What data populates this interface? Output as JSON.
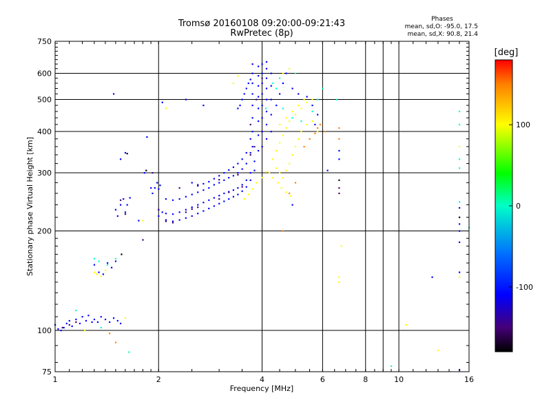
{
  "chart_data": {
    "type": "scatter",
    "title": "Tromsø 20160108 09:20:00-09:21:43",
    "subtitle": "RwPretec (8p)",
    "xlabel": "Frequency [MHz]",
    "ylabel": "Stationary phase Virtual Height [km]",
    "x_scale": "log",
    "y_scale": "log",
    "xlim": [
      1,
      16
    ],
    "ylim": [
      75,
      750
    ],
    "x_ticks": [
      1,
      2,
      4,
      6,
      8,
      10,
      16
    ],
    "y_ticks": [
      75,
      100,
      200,
      300,
      400,
      500,
      600,
      750
    ],
    "grid": true,
    "phase_stats": {
      "heading": "Phases",
      "line_o": "mean, sd,O: -95.0, 17.5",
      "line_x": "mean, sd,X:  90.8, 21.4"
    },
    "colorbar": {
      "label": "[deg]",
      "range": [
        -180,
        180
      ],
      "ticks": [
        100,
        0,
        -100
      ],
      "colors": [
        "#ff0000",
        "#ff8000",
        "#ffff00",
        "#00ff00",
        "#00ffff",
        "#0000ff",
        "#4000a0",
        "#000000"
      ]
    },
    "series": [
      {
        "color_phase": -110,
        "points": [
          [
            1.0,
            104
          ],
          [
            1.02,
            101
          ],
          [
            1.04,
            100
          ],
          [
            1.06,
            102
          ],
          [
            1.08,
            105
          ],
          [
            1.1,
            107
          ],
          [
            1.12,
            103
          ],
          [
            1.15,
            108
          ],
          [
            1.18,
            105
          ],
          [
            1.2,
            110
          ],
          [
            1.23,
            107
          ],
          [
            1.25,
            111
          ],
          [
            1.28,
            106
          ],
          [
            1.3,
            108
          ],
          [
            1.33,
            106
          ],
          [
            1.36,
            110
          ],
          [
            1.4,
            108
          ],
          [
            1.44,
            106
          ],
          [
            1.48,
            109
          ],
          [
            1.52,
            107
          ],
          [
            1.55,
            105
          ],
          [
            1.3,
            158
          ],
          [
            1.34,
            150
          ],
          [
            1.38,
            148
          ],
          [
            1.42,
            160
          ],
          [
            1.46,
            155
          ],
          [
            1.5,
            162
          ],
          [
            1.5,
            232
          ],
          [
            1.52,
            222
          ],
          [
            1.55,
            240
          ],
          [
            1.58,
            250
          ],
          [
            1.6,
            228
          ],
          [
            1.62,
            240
          ],
          [
            1.65,
            252
          ],
          [
            1.55,
            330
          ],
          [
            1.6,
            345
          ],
          [
            1.48,
            520
          ],
          [
            1.75,
            215
          ],
          [
            1.82,
            300
          ],
          [
            1.85,
            385
          ],
          [
            1.9,
            270
          ],
          [
            1.92,
            260
          ],
          [
            1.95,
            270
          ],
          [
            1.98,
            280
          ],
          [
            2.0,
            268
          ],
          [
            2.02,
            275
          ],
          [
            2.0,
            232
          ],
          [
            2.05,
            228
          ],
          [
            2.1,
            226
          ],
          [
            2.2,
            225
          ],
          [
            2.3,
            228
          ],
          [
            2.4,
            232
          ],
          [
            2.5,
            236
          ],
          [
            2.6,
            240
          ],
          [
            2.7,
            244
          ],
          [
            2.8,
            248
          ],
          [
            2.9,
            252
          ],
          [
            3.0,
            256
          ],
          [
            3.1,
            260
          ],
          [
            3.2,
            263
          ],
          [
            3.3,
            266
          ],
          [
            3.4,
            270
          ],
          [
            3.5,
            276
          ],
          [
            3.6,
            285
          ],
          [
            3.7,
            300
          ],
          [
            3.8,
            325
          ],
          [
            2.0,
            222
          ],
          [
            2.1,
            216
          ],
          [
            2.2,
            214
          ],
          [
            2.3,
            216
          ],
          [
            2.4,
            219
          ],
          [
            2.5,
            222
          ],
          [
            2.6,
            226
          ],
          [
            2.7,
            230
          ],
          [
            2.8,
            234
          ],
          [
            2.9,
            238
          ],
          [
            3.0,
            242
          ],
          [
            3.1,
            246
          ],
          [
            3.2,
            250
          ],
          [
            3.3,
            254
          ],
          [
            3.4,
            258
          ],
          [
            3.5,
            264
          ],
          [
            3.6,
            272
          ],
          [
            3.7,
            285
          ],
          [
            3.8,
            305
          ],
          [
            2.1,
            250
          ],
          [
            2.2,
            248
          ],
          [
            2.3,
            250
          ],
          [
            2.4,
            254
          ],
          [
            2.5,
            258
          ],
          [
            2.6,
            262
          ],
          [
            2.7,
            266
          ],
          [
            2.8,
            270
          ],
          [
            2.9,
            276
          ],
          [
            3.0,
            280
          ],
          [
            3.1,
            285
          ],
          [
            3.2,
            290
          ],
          [
            3.3,
            294
          ],
          [
            3.4,
            300
          ],
          [
            3.5,
            308
          ],
          [
            3.6,
            320
          ],
          [
            3.7,
            345
          ],
          [
            2.5,
            280
          ],
          [
            2.6,
            276
          ],
          [
            2.7,
            278
          ],
          [
            2.8,
            282
          ],
          [
            2.9,
            288
          ],
          [
            3.0,
            294
          ],
          [
            3.1,
            300
          ],
          [
            3.2,
            306
          ],
          [
            3.3,
            312
          ],
          [
            3.4,
            320
          ],
          [
            3.5,
            330
          ],
          [
            3.6,
            345
          ],
          [
            3.7,
            380
          ],
          [
            2.05,
            490
          ],
          [
            2.4,
            500
          ],
          [
            2.7,
            480
          ],
          [
            3.4,
            470
          ],
          [
            3.45,
            480
          ],
          [
            3.5,
            500
          ],
          [
            3.55,
            520
          ],
          [
            3.6,
            540
          ],
          [
            3.65,
            560
          ],
          [
            3.7,
            575
          ],
          [
            3.75,
            360
          ],
          [
            3.75,
            400
          ],
          [
            3.75,
            440
          ],
          [
            3.75,
            480
          ],
          [
            3.75,
            520
          ],
          [
            3.75,
            560
          ],
          [
            3.75,
            600
          ],
          [
            3.75,
            640
          ],
          [
            3.9,
            350
          ],
          [
            3.9,
            390
          ],
          [
            3.9,
            430
          ],
          [
            3.9,
            470
          ],
          [
            3.9,
            510
          ],
          [
            3.9,
            550
          ],
          [
            3.9,
            590
          ],
          [
            3.9,
            630
          ],
          [
            4.0,
            360
          ],
          [
            4.0,
            400
          ],
          [
            4.0,
            440
          ],
          [
            4.0,
            480
          ],
          [
            4.0,
            520
          ],
          [
            4.0,
            560
          ],
          [
            4.0,
            600
          ],
          [
            4.0,
            640
          ],
          [
            4.12,
            380
          ],
          [
            4.12,
            420
          ],
          [
            4.12,
            460
          ],
          [
            4.12,
            500
          ],
          [
            4.12,
            540
          ],
          [
            4.12,
            580
          ],
          [
            4.12,
            620
          ],
          [
            4.12,
            650
          ],
          [
            4.25,
            400
          ],
          [
            4.25,
            450
          ],
          [
            4.25,
            500
          ],
          [
            4.25,
            550
          ],
          [
            4.25,
            600
          ],
          [
            4.4,
            480
          ],
          [
            4.5,
            520
          ],
          [
            4.6,
            560
          ],
          [
            4.7,
            600
          ],
          [
            4.9,
            540
          ],
          [
            5.1,
            520
          ],
          [
            5.4,
            510
          ],
          [
            5.6,
            480
          ],
          [
            5.7,
            420
          ],
          [
            5.8,
            450
          ],
          [
            4.9,
            240
          ],
          [
            6.2,
            305
          ],
          [
            6.7,
            350
          ],
          [
            6.7,
            330
          ],
          [
            15.0,
            235
          ],
          [
            15.0,
            210
          ],
          [
            15.0,
            200
          ],
          [
            15.0,
            185
          ],
          [
            15.0,
            150
          ],
          [
            15.0,
            76
          ],
          [
            12.5,
            145
          ]
        ]
      },
      {
        "color_phase": -150,
        "points": [
          [
            2.4,
            228
          ],
          [
            2.5,
            233
          ],
          [
            2.6,
            236
          ],
          [
            3.0,
            250
          ],
          [
            3.2,
            262
          ],
          [
            3.5,
            272
          ],
          [
            3.7,
            340
          ],
          [
            3.8,
            360
          ],
          [
            2.0,
            232
          ],
          [
            2.1,
            214
          ],
          [
            2.2,
            212
          ],
          [
            1.05,
            102
          ],
          [
            1.1,
            104
          ],
          [
            1.15,
            106
          ],
          [
            2.3,
            270
          ],
          [
            2.6,
            274
          ],
          [
            3.0,
            286
          ],
          [
            3.4,
            296
          ],
          [
            3.7,
            420
          ],
          [
            3.85,
            500
          ],
          [
            4.0,
            580
          ],
          [
            1.8,
            188
          ],
          [
            1.55,
            248
          ],
          [
            1.92,
            300
          ],
          [
            1.6,
            225
          ],
          [
            6.7,
            270
          ],
          [
            6.7,
            260
          ]
        ]
      },
      {
        "color_phase": 100,
        "points": [
          [
            4.3,
            330
          ],
          [
            4.4,
            310
          ],
          [
            4.5,
            300
          ],
          [
            4.6,
            290
          ],
          [
            4.7,
            305
          ],
          [
            4.8,
            320
          ],
          [
            4.9,
            340
          ],
          [
            5.0,
            360
          ],
          [
            5.1,
            380
          ],
          [
            5.2,
            400
          ],
          [
            5.4,
            420
          ],
          [
            5.6,
            430
          ],
          [
            5.8,
            400
          ],
          [
            4.4,
            350
          ],
          [
            4.5,
            370
          ],
          [
            4.6,
            390
          ],
          [
            4.7,
            410
          ],
          [
            4.8,
            430
          ],
          [
            5.0,
            450
          ],
          [
            5.2,
            470
          ],
          [
            5.4,
            490
          ],
          [
            5.6,
            500
          ],
          [
            4.2,
            300
          ],
          [
            4.3,
            290
          ],
          [
            4.45,
            280
          ],
          [
            4.55,
            270
          ],
          [
            4.7,
            262
          ],
          [
            4.85,
            255
          ],
          [
            3.55,
            250
          ],
          [
            3.65,
            258
          ],
          [
            3.75,
            268
          ],
          [
            3.85,
            280
          ],
          [
            4.0,
            290
          ],
          [
            4.1,
            302
          ],
          [
            4.5,
            420
          ],
          [
            4.7,
            440
          ],
          [
            4.9,
            460
          ],
          [
            5.1,
            480
          ],
          [
            5.3,
            500
          ],
          [
            4.6,
            600
          ],
          [
            4.8,
            620
          ],
          [
            1.3,
            150
          ],
          [
            1.32,
            148
          ],
          [
            1.36,
            146
          ],
          [
            1.4,
            152
          ],
          [
            1.22,
            100
          ],
          [
            1.6,
            109
          ],
          [
            1.8,
            215
          ],
          [
            2.1,
            470
          ],
          [
            3.3,
            560
          ],
          [
            3.4,
            590
          ],
          [
            6.8,
            180
          ],
          [
            6.7,
            145
          ],
          [
            6.7,
            140
          ],
          [
            10.5,
            104
          ],
          [
            13.0,
            87
          ],
          [
            15.0,
            145
          ],
          [
            15.0,
            360
          ]
        ]
      },
      {
        "color_phase": 150,
        "points": [
          [
            5.5,
            380
          ],
          [
            5.7,
            395
          ],
          [
            5.8,
            410
          ],
          [
            5.9,
            420
          ],
          [
            5.3,
            360
          ],
          [
            4.8,
            260
          ],
          [
            6.1,
            400
          ],
          [
            5.0,
            280
          ],
          [
            1.44,
            98
          ],
          [
            1.5,
            92
          ],
          [
            4.6,
            200
          ],
          [
            6.7,
            410
          ],
          [
            6.7,
            380
          ]
        ]
      },
      {
        "color_phase": 0,
        "points": [
          [
            4.3,
            560
          ],
          [
            4.4,
            540
          ],
          [
            4.6,
            470
          ],
          [
            4.9,
            440
          ],
          [
            5.2,
            430
          ],
          [
            5.6,
            460
          ],
          [
            5.8,
            500
          ],
          [
            6.0,
            540
          ],
          [
            4.1,
            470
          ],
          [
            4.5,
            580
          ],
          [
            5.0,
            600
          ],
          [
            6.6,
            500
          ],
          [
            1.3,
            165
          ],
          [
            1.34,
            162
          ],
          [
            1.42,
            158
          ],
          [
            1.5,
            165
          ],
          [
            1.15,
            115
          ],
          [
            1.36,
            102
          ],
          [
            1.64,
            86
          ],
          [
            15.0,
            460
          ],
          [
            15.0,
            420
          ],
          [
            15.0,
            330
          ],
          [
            15.0,
            310
          ],
          [
            15.0,
            245
          ],
          [
            16.0,
            205
          ],
          [
            9.5,
            78
          ]
        ]
      },
      {
        "color_phase": -180,
        "points": [
          [
            1.62,
            343
          ],
          [
            1.84,
            305
          ],
          [
            1.56,
            170
          ],
          [
            6.7,
            285
          ],
          [
            15.0,
            220
          ]
        ]
      }
    ]
  }
}
